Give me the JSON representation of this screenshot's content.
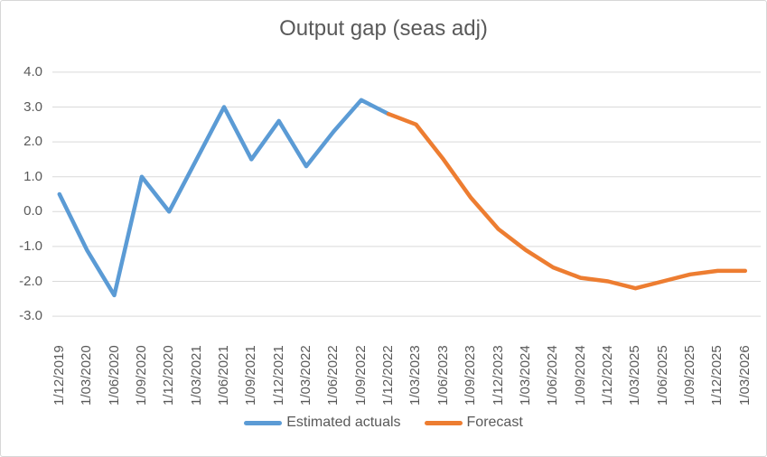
{
  "chart_data": {
    "type": "line",
    "title": "Output gap (seas adj)",
    "categories": [
      "1/12/2019",
      "1/03/2020",
      "1/06/2020",
      "1/09/2020",
      "1/12/2020",
      "1/03/2021",
      "1/06/2021",
      "1/09/2021",
      "1/12/2021",
      "1/03/2022",
      "1/06/2022",
      "1/09/2022",
      "1/12/2022",
      "1/03/2023",
      "1/06/2023",
      "1/09/2023",
      "1/12/2023",
      "1/03/2024",
      "1/06/2024",
      "1/09/2024",
      "1/12/2024",
      "1/03/2025",
      "1/06/2025",
      "1/09/2025",
      "1/12/2025",
      "1/03/2026"
    ],
    "series": [
      {
        "name": "Estimated actuals",
        "color": "#5B9BD5",
        "start_index": 0,
        "values": [
          0.5,
          -1.1,
          -2.4,
          1.0,
          0.0,
          1.5,
          3.0,
          1.5,
          2.6,
          1.3,
          2.3,
          3.2,
          2.8
        ]
      },
      {
        "name": "Forecast",
        "color": "#ED7D31",
        "start_index": 12,
        "values": [
          2.8,
          2.5,
          1.5,
          0.4,
          -0.5,
          -1.1,
          -1.6,
          -1.9,
          -2.0,
          -2.2,
          -2.0,
          -1.8,
          -1.7,
          -1.7
        ]
      }
    ],
    "y_axis": {
      "min": -3.0,
      "max": 4.0,
      "step": 1.0,
      "tick_labels": [
        "4.0",
        "3.0",
        "2.0",
        "1.0",
        "0.0",
        "-1.0",
        "-2.0",
        "-3.0"
      ]
    },
    "x_axis": {
      "label_rotation_degrees": 90
    },
    "grid": "horizontal",
    "legend_position": "bottom",
    "colors": {
      "gridline": "#D9D9D9",
      "axis_text": "#595959",
      "title_text": "#595959",
      "background": "#FFFFFF",
      "border": "#D7D7D7"
    }
  }
}
